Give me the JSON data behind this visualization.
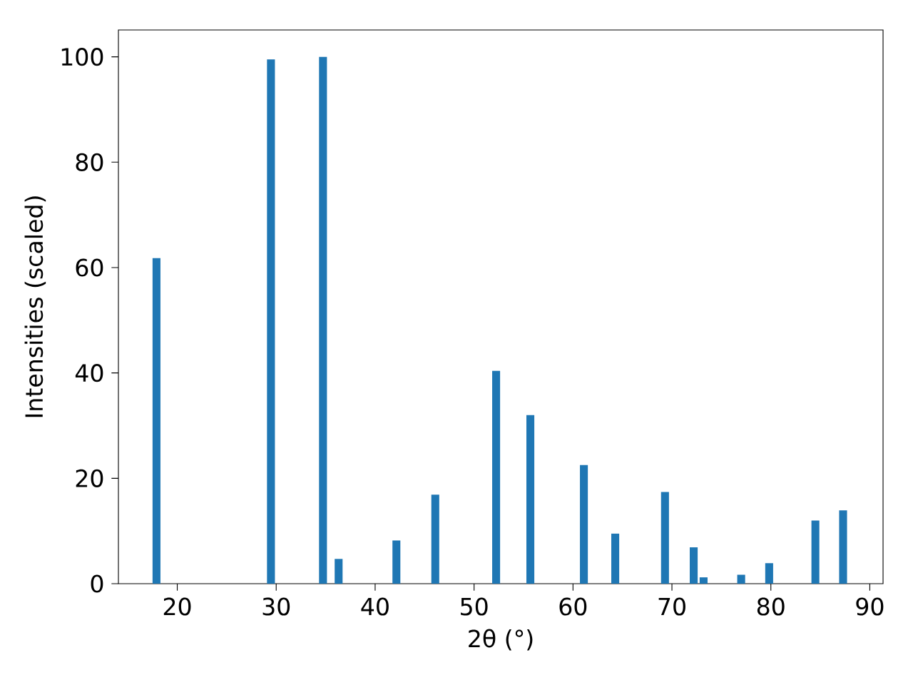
{
  "chart_data": {
    "type": "bar",
    "xlabel": "2θ (°)",
    "ylabel": "Intensities (scaled)",
    "x": [
      17.9,
      29.47,
      34.73,
      36.31,
      42.15,
      46.08,
      52.23,
      55.69,
      61.1,
      64.27,
      69.3,
      72.2,
      73.2,
      77.0,
      79.83,
      84.5,
      87.3
    ],
    "values": [
      61.8,
      99.5,
      100,
      4.7,
      8.2,
      16.9,
      40.4,
      32.0,
      22.5,
      9.5,
      17.4,
      6.9,
      1.2,
      1.7,
      3.9,
      12.0,
      13.9
    ],
    "color": "#1f77b4",
    "xlim": [
      14.05,
      91.34
    ],
    "ylim": [
      0,
      105.1
    ],
    "xticks": [
      20,
      30,
      40,
      50,
      60,
      70,
      80,
      90
    ],
    "yticks": [
      0,
      20,
      40,
      60,
      80,
      100
    ]
  }
}
